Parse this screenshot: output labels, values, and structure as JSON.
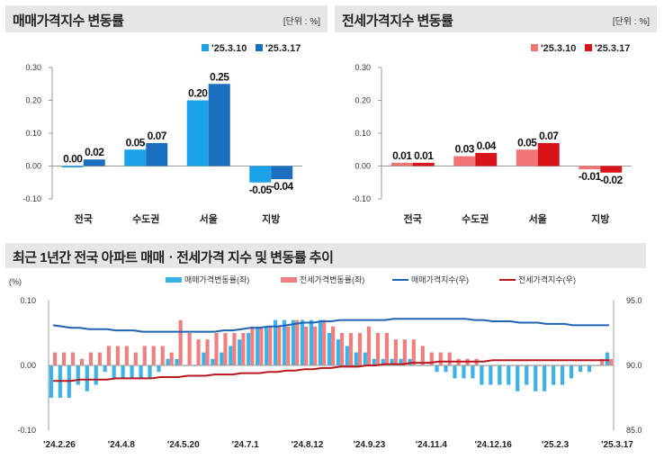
{
  "panels": [
    {
      "title": "매매가격지수 변동률",
      "unit": "[단위 : %]",
      "legend": [
        "'25.3.10",
        "'25.3.17"
      ],
      "colors": [
        "#1aa3e8",
        "#1b6fbf"
      ]
    },
    {
      "title": "전세가격지수 변동률",
      "unit": "[단위 : %]",
      "legend": [
        "'25.3.10",
        "'25.3.17"
      ],
      "colors": [
        "#f07575",
        "#d7141a"
      ]
    },
    {
      "title": "최근 1년간 전국 아파트 매매ㆍ전세가격 지수 및 변동률 추이",
      "legend": [
        "매매가격변동률(좌)",
        "전세가격변동률(좌)",
        "매매가격지수(우)",
        "전세가격지수(우)"
      ],
      "colors": [
        "#3bb3ea",
        "#f08080",
        "#1f63b4",
        "#b8181e"
      ]
    }
  ],
  "chart_data": [
    {
      "type": "bar",
      "title": "매매가격지수 변동률",
      "categories": [
        "전국",
        "수도권",
        "서울",
        "지방"
      ],
      "series": [
        {
          "name": "'25.3.10",
          "values": [
            0.0,
            0.05,
            0.2,
            -0.05
          ]
        },
        {
          "name": "'25.3.17",
          "values": [
            0.02,
            0.07,
            0.25,
            -0.04
          ]
        }
      ],
      "ylim": [
        -0.1,
        0.3
      ],
      "yticks": [
        "0.30",
        "0.20",
        "0.10",
        "0.00",
        "-0.10"
      ],
      "legend_position": "top-right"
    },
    {
      "type": "bar",
      "title": "전세가격지수 변동률",
      "categories": [
        "전국",
        "수도권",
        "서울",
        "지방"
      ],
      "series": [
        {
          "name": "'25.3.10",
          "values": [
            0.01,
            0.03,
            0.05,
            -0.01
          ]
        },
        {
          "name": "'25.3.17",
          "values": [
            0.01,
            0.04,
            0.07,
            -0.02
          ]
        }
      ],
      "ylim": [
        -0.1,
        0.3
      ],
      "yticks": [
        "0.30",
        "0.20",
        "0.10",
        "0.00",
        "-0.10"
      ],
      "legend_position": "top-right"
    },
    {
      "type": "bar",
      "title": "최근 1년간 전국 아파트 매매ㆍ전세가격 지수 및 변동률 추이",
      "ylabel": "(%)",
      "ylim": [
        -0.1,
        0.1
      ],
      "yticks": [
        "0.10",
        "0.00",
        "-0.10"
      ],
      "y2lim": [
        85.0,
        95.0
      ],
      "y2ticks": [
        "95.0",
        "90.0",
        "85.0"
      ],
      "xticks": [
        "'24.2.26",
        "'24.4.8",
        "'24.5.20",
        "'24.7.1",
        "'24.8.12",
        "'24.9.23",
        "'24.11.4",
        "'24.12.16",
        "'25.2.3",
        "'25.3.17"
      ],
      "series": [
        {
          "name": "매매가격변동률(좌)",
          "kind": "bar",
          "axis": "left",
          "values": [
            -0.05,
            -0.05,
            -0.05,
            -0.03,
            -0.04,
            -0.03,
            -0.01,
            -0.02,
            -0.02,
            -0.02,
            -0.02,
            -0.02,
            -0.01,
            0.01,
            0.01,
            0.0,
            0.0,
            0.02,
            0.01,
            0.02,
            0.03,
            0.04,
            0.05,
            0.06,
            0.06,
            0.07,
            0.07,
            0.07,
            0.07,
            0.07,
            0.07,
            0.05,
            0.04,
            0.03,
            0.02,
            0.02,
            0.01,
            0.01,
            0.01,
            0.01,
            0.01,
            0.0,
            0.0,
            -0.01,
            -0.01,
            -0.02,
            -0.02,
            -0.02,
            -0.03,
            -0.03,
            -0.03,
            -0.03,
            -0.04,
            -0.03,
            -0.04,
            -0.04,
            -0.03,
            -0.03,
            -0.02,
            -0.01,
            -0.01,
            0.0,
            0.02
          ]
        },
        {
          "name": "전세가격변동률(좌)",
          "kind": "bar",
          "axis": "left",
          "values": [
            0.02,
            0.02,
            0.02,
            0.01,
            0.02,
            0.02,
            0.03,
            0.03,
            0.03,
            0.02,
            0.03,
            0.03,
            0.03,
            0.02,
            0.07,
            0.05,
            0.04,
            0.04,
            0.05,
            0.05,
            0.05,
            0.05,
            0.06,
            0.06,
            0.06,
            0.06,
            0.06,
            0.07,
            0.06,
            0.06,
            0.07,
            0.06,
            0.05,
            0.05,
            0.05,
            0.06,
            0.05,
            0.05,
            0.04,
            0.04,
            0.04,
            0.03,
            0.02,
            0.02,
            0.02,
            0.01,
            0.01,
            0.01,
            0.0,
            0.0,
            0.0,
            0.0,
            0.0,
            0.0,
            0.0,
            0.0,
            0.0,
            0.0,
            0.0,
            0.0,
            0.0,
            0.01,
            0.01
          ]
        },
        {
          "name": "매매가격지수(우)",
          "kind": "line",
          "axis": "right",
          "values": [
            93.1,
            93.0,
            92.9,
            92.9,
            92.8,
            92.8,
            92.8,
            92.7,
            92.7,
            92.7,
            92.6,
            92.6,
            92.6,
            92.6,
            92.6,
            92.6,
            92.6,
            92.6,
            92.6,
            92.7,
            92.7,
            92.8,
            92.9,
            92.9,
            93.0,
            93.0,
            93.1,
            93.2,
            93.3,
            93.3,
            93.4,
            93.4,
            93.5,
            93.5,
            93.5,
            93.5,
            93.5,
            93.5,
            93.6,
            93.6,
            93.6,
            93.6,
            93.6,
            93.6,
            93.6,
            93.6,
            93.6,
            93.5,
            93.5,
            93.4,
            93.4,
            93.4,
            93.3,
            93.3,
            93.3,
            93.2,
            93.2,
            93.2,
            93.1,
            93.1,
            93.1,
            93.1,
            93.1
          ]
        },
        {
          "name": "전세가격지수(우)",
          "kind": "line",
          "axis": "right",
          "values": [
            88.8,
            88.8,
            88.8,
            88.9,
            88.9,
            88.9,
            88.9,
            89.0,
            89.0,
            89.0,
            89.0,
            89.0,
            89.1,
            89.1,
            89.1,
            89.2,
            89.2,
            89.2,
            89.3,
            89.3,
            89.3,
            89.4,
            89.4,
            89.4,
            89.5,
            89.5,
            89.6,
            89.6,
            89.7,
            89.7,
            89.8,
            89.8,
            89.9,
            89.9,
            89.9,
            90.0,
            90.0,
            90.1,
            90.1,
            90.1,
            90.2,
            90.2,
            90.2,
            90.3,
            90.3,
            90.3,
            90.3,
            90.3,
            90.3,
            90.4,
            90.4,
            90.4,
            90.4,
            90.4,
            90.4,
            90.4,
            90.4,
            90.4,
            90.4,
            90.4,
            90.4,
            90.4,
            90.4
          ]
        }
      ]
    }
  ]
}
